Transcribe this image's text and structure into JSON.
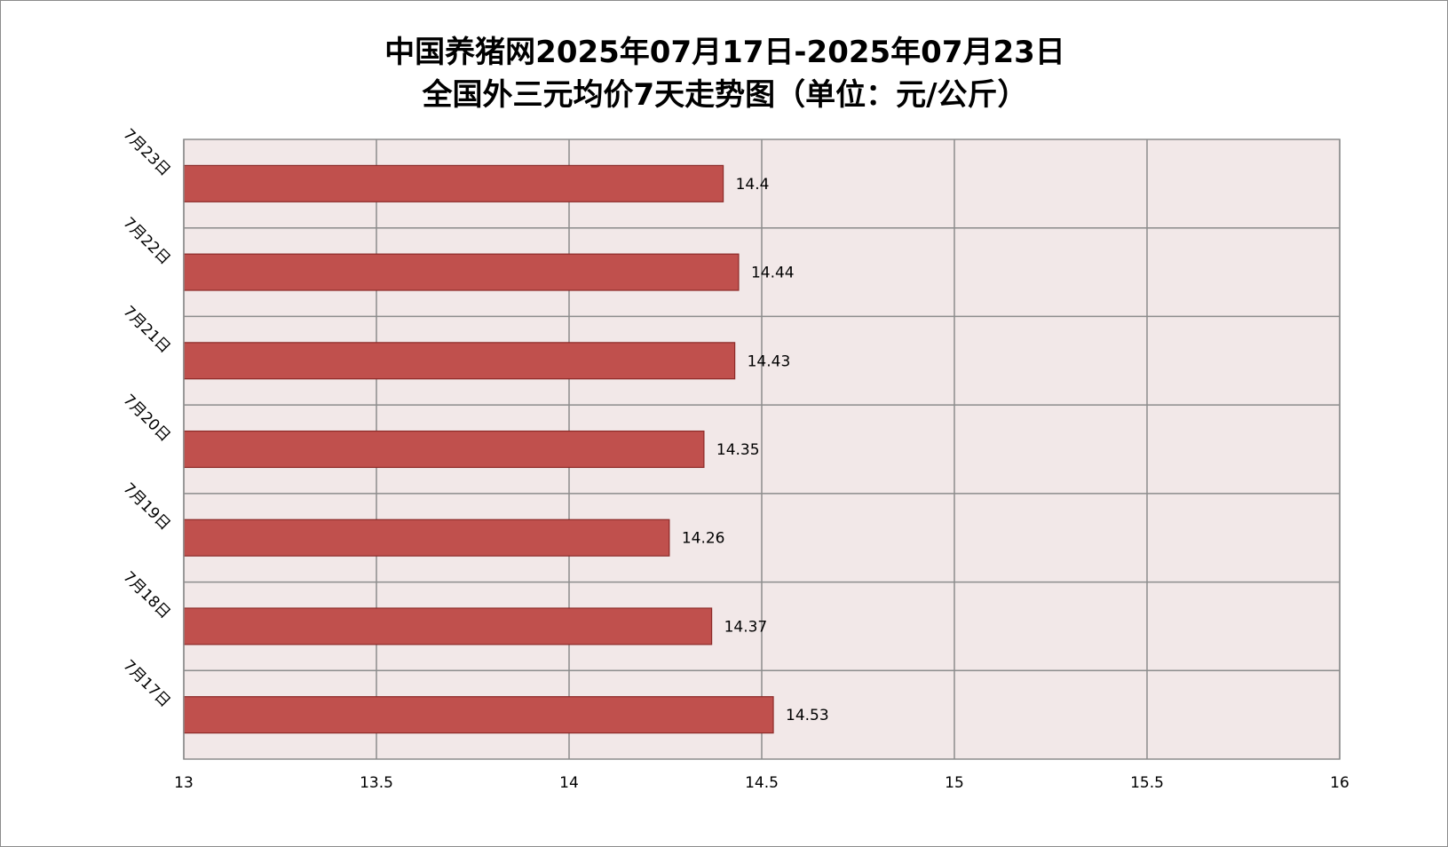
{
  "chart_data": {
    "type": "bar",
    "orientation": "horizontal",
    "title": "中国养猪网2025年07月17日-2025年07月23日",
    "subtitle": "全国外三元均价7天走势图（单位：元/公斤）",
    "categories": [
      "7月17日",
      "7月18日",
      "7月19日",
      "7月20日",
      "7月21日",
      "7月22日",
      "7月23日"
    ],
    "values": [
      14.53,
      14.37,
      14.26,
      14.35,
      14.43,
      14.44,
      14.4
    ],
    "value_labels": [
      "14.53",
      "14.37",
      "14.26",
      "14.35",
      "14.43",
      "14.44",
      "14.4"
    ],
    "xlim": [
      13,
      16
    ],
    "x_ticks": [
      13,
      13.5,
      14,
      14.5,
      15,
      15.5,
      16
    ],
    "x_tick_labels": [
      "13",
      "13.5",
      "14",
      "14.5",
      "15",
      "15.5",
      "16"
    ],
    "grid": true,
    "legend": "none",
    "colors": {
      "bar_fill": "#c0504d",
      "bar_stroke": "#8c2a28",
      "plot_background": "#f2e8e8",
      "grid": "#8c8c8c"
    }
  }
}
